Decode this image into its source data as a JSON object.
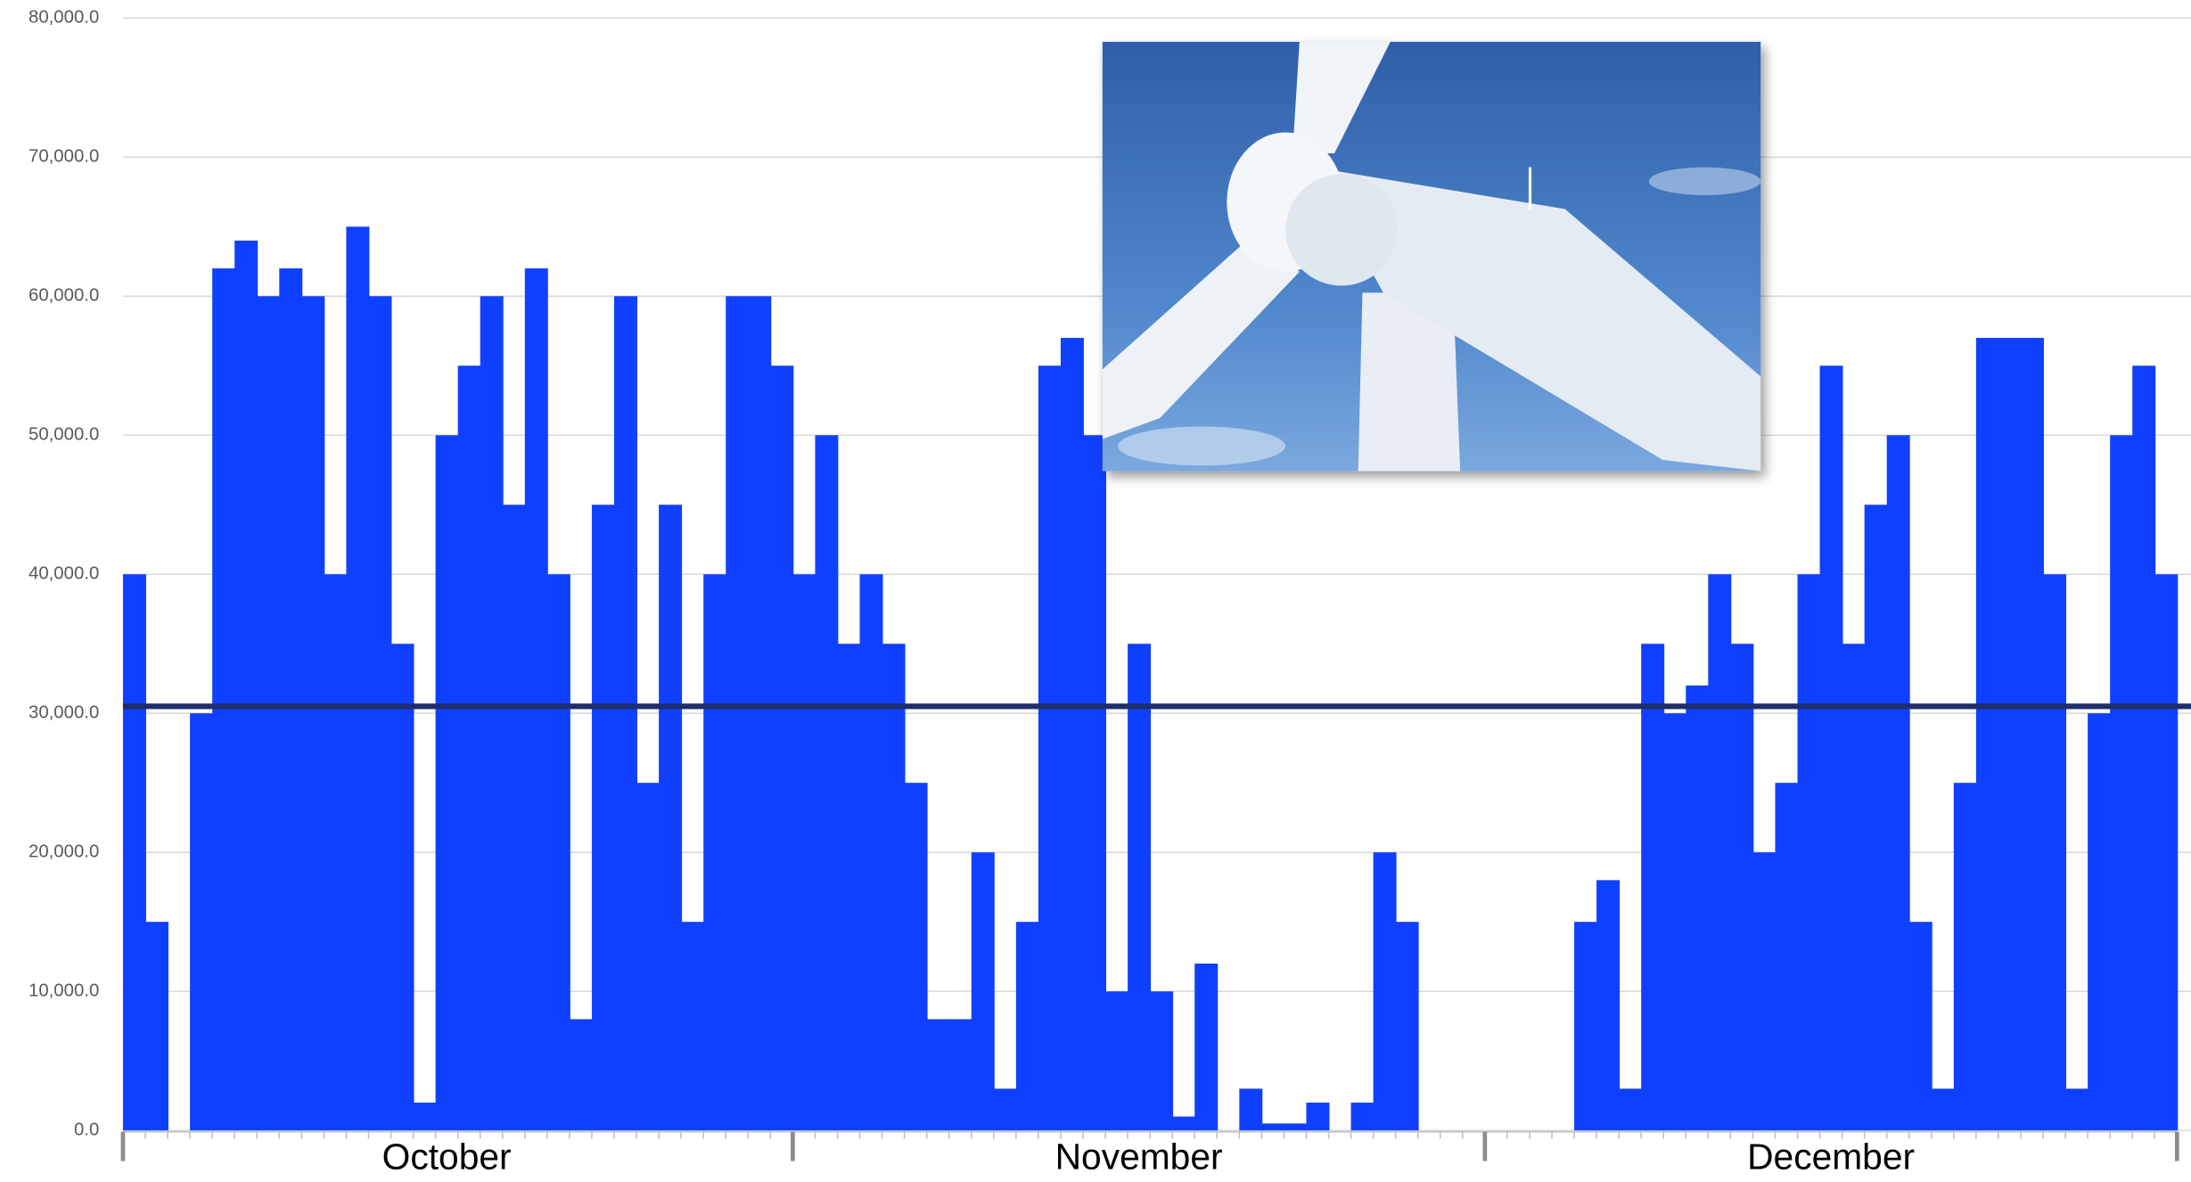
{
  "chart_data": {
    "type": "bar",
    "categories": [
      null,
      null,
      null,
      null,
      null,
      null,
      null,
      null,
      null,
      null,
      null,
      null,
      null,
      null,
      "October",
      null,
      null,
      null,
      null,
      null,
      null,
      null,
      null,
      null,
      null,
      null,
      null,
      null,
      null,
      null,
      null,
      null,
      null,
      null,
      null,
      null,
      null,
      null,
      null,
      null,
      null,
      null,
      null,
      null,
      null,
      "November",
      null,
      null,
      null,
      null,
      null,
      null,
      null,
      null,
      null,
      null,
      null,
      null,
      null,
      null,
      null,
      null,
      null,
      null,
      null,
      null,
      null,
      null,
      null,
      null,
      null,
      null,
      null,
      null,
      null,
      null,
      "December",
      null,
      null,
      null,
      null,
      null,
      null,
      null,
      null,
      null,
      null,
      null,
      null,
      null,
      null,
      null
    ],
    "values": [
      40000,
      15000,
      0,
      30000,
      62000,
      64000,
      60000,
      62000,
      60000,
      40000,
      65000,
      60000,
      35000,
      2000,
      50000,
      55000,
      60000,
      45000,
      62000,
      40000,
      8000,
      45000,
      60000,
      25000,
      45000,
      15000,
      40000,
      60000,
      60000,
      55000,
      40000,
      50000,
      35000,
      40000,
      35000,
      25000,
      8000,
      8000,
      20000,
      3000,
      15000,
      55000,
      57000,
      50000,
      10000,
      35000,
      10000,
      1000,
      12000,
      0,
      3000,
      500,
      500,
      2000,
      0,
      2000,
      20000,
      15000,
      0,
      0,
      0,
      0,
      0,
      0,
      0,
      15000,
      18000,
      3000,
      35000,
      30000,
      32000,
      40000,
      35000,
      20000,
      25000,
      40000,
      55000,
      35000,
      45000,
      50000,
      15000,
      3000,
      25000,
      57000,
      57000,
      57000,
      40000,
      3000,
      30000,
      50000,
      55000,
      40000
    ],
    "color": "#1040ff",
    "hline": {
      "value": 30500,
      "color": "#1f2d6b"
    },
    "ylim": [
      0,
      80000
    ],
    "yticks": [
      {
        "value": 0,
        "label": "0.0"
      },
      {
        "value": 10000,
        "label": "10,000.0"
      },
      {
        "value": 20000,
        "label": "20,000.0"
      },
      {
        "value": 30000,
        "label": "30,000.0"
      },
      {
        "value": 40000,
        "label": "40,000.0"
      },
      {
        "value": 50000,
        "label": "50,000.0"
      },
      {
        "value": 60000,
        "label": "60,000.0"
      },
      {
        "value": 70000,
        "label": "70,000.0"
      },
      {
        "value": 80000,
        "label": "80,000.0"
      }
    ],
    "grid": true
  }
}
